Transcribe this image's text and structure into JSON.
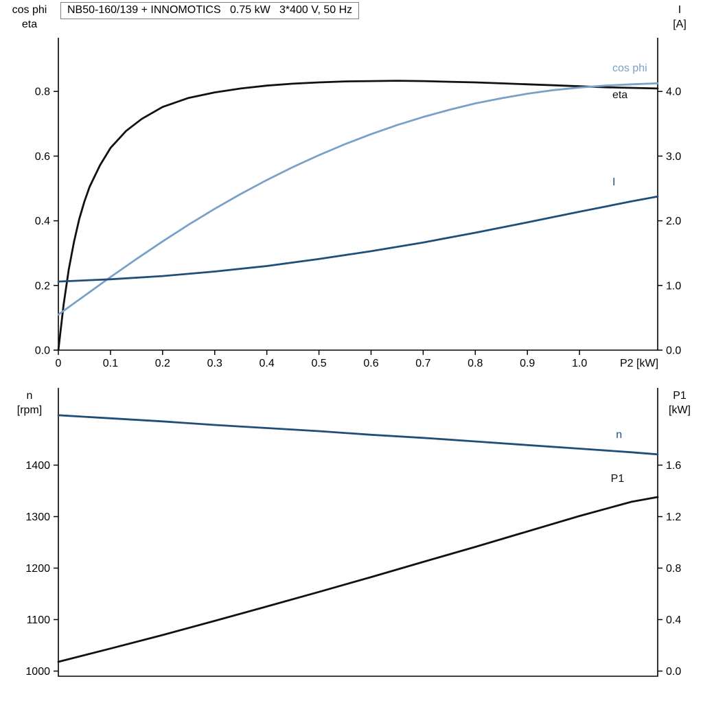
{
  "page": {
    "background": "#ffffff"
  },
  "title_box": {
    "text": "NB50-160/139 + INNOMOTICS   0.75 kW   3*400 V, 50 Hz"
  },
  "colors": {
    "black": "#111111",
    "light_blue": "#79A1C8",
    "dark_blue": "#1F4E79"
  },
  "chart_data": [
    {
      "type": "line",
      "name": "electrical-curves",
      "corner_labels": {
        "top_left": [
          "cos phi",
          "eta"
        ],
        "top_right": [
          "I",
          "[A]"
        ]
      },
      "x": {
        "lim": [
          0,
          1.15
        ],
        "tick_values": [
          0,
          0.1,
          0.2,
          0.3,
          0.4,
          0.5,
          0.6,
          0.7,
          0.8,
          0.9,
          1.0
        ],
        "tick_labels": [
          "0",
          "0.1",
          "0.2",
          "0.3",
          "0.4",
          "0.5",
          "0.6",
          "0.7",
          "0.8",
          "0.9",
          "1.0"
        ],
        "label": "P2 [kW]"
      },
      "left_axis": {
        "lim": [
          0,
          0.966
        ],
        "tick_values": [
          0,
          0.2,
          0.4,
          0.6,
          0.8
        ],
        "tick_labels": [
          "0.0",
          "0.2",
          "0.4",
          "0.6",
          "0.8"
        ]
      },
      "right_axis": {
        "lim": [
          0,
          4.83
        ],
        "tick_values": [
          0,
          1,
          2,
          3,
          4
        ],
        "tick_labels": [
          "0.0",
          "1.0",
          "2.0",
          "3.0",
          "4.0"
        ]
      },
      "series": [
        {
          "name": "eta",
          "axis": "left_axis",
          "color": "#111111",
          "label": {
            "text": "eta",
            "x": 1.063,
            "y": 0.779
          },
          "points": [
            [
              0,
              0
            ],
            [
              0.01,
              0.14
            ],
            [
              0.02,
              0.25
            ],
            [
              0.03,
              0.335
            ],
            [
              0.04,
              0.405
            ],
            [
              0.05,
              0.46
            ],
            [
              0.06,
              0.505
            ],
            [
              0.08,
              0.572
            ],
            [
              0.1,
              0.625
            ],
            [
              0.13,
              0.678
            ],
            [
              0.16,
              0.715
            ],
            [
              0.2,
              0.752
            ],
            [
              0.25,
              0.78
            ],
            [
              0.3,
              0.797
            ],
            [
              0.35,
              0.809
            ],
            [
              0.4,
              0.818
            ],
            [
              0.45,
              0.824
            ],
            [
              0.5,
              0.828
            ],
            [
              0.55,
              0.831
            ],
            [
              0.6,
              0.832
            ],
            [
              0.65,
              0.833
            ],
            [
              0.7,
              0.832
            ],
            [
              0.75,
              0.83
            ],
            [
              0.8,
              0.828
            ],
            [
              0.85,
              0.825
            ],
            [
              0.9,
              0.822
            ],
            [
              0.95,
              0.819
            ],
            [
              1.0,
              0.816
            ],
            [
              1.05,
              0.813
            ],
            [
              1.1,
              0.811
            ],
            [
              1.15,
              0.809
            ]
          ]
        },
        {
          "name": "cos-phi",
          "axis": "left_axis",
          "color": "#79A1C8",
          "label": {
            "text": "cos phi",
            "x": 1.063,
            "y": 0.862
          },
          "points": [
            [
              0,
              0.11
            ],
            [
              0.05,
              0.168
            ],
            [
              0.1,
              0.226
            ],
            [
              0.15,
              0.282
            ],
            [
              0.2,
              0.336
            ],
            [
              0.25,
              0.388
            ],
            [
              0.3,
              0.437
            ],
            [
              0.35,
              0.483
            ],
            [
              0.4,
              0.526
            ],
            [
              0.45,
              0.566
            ],
            [
              0.5,
              0.603
            ],
            [
              0.55,
              0.637
            ],
            [
              0.6,
              0.668
            ],
            [
              0.65,
              0.696
            ],
            [
              0.7,
              0.721
            ],
            [
              0.75,
              0.743
            ],
            [
              0.8,
              0.763
            ],
            [
              0.85,
              0.779
            ],
            [
              0.9,
              0.793
            ],
            [
              0.95,
              0.804
            ],
            [
              1.0,
              0.812
            ],
            [
              1.05,
              0.818
            ],
            [
              1.1,
              0.822
            ],
            [
              1.15,
              0.825
            ]
          ]
        },
        {
          "name": "current",
          "axis": "right_axis",
          "color": "#1F4E79",
          "label": {
            "text": "I",
            "x": 1.063,
            "y": 2.55
          },
          "points": [
            [
              0,
              1.06
            ],
            [
              0.1,
              1.095
            ],
            [
              0.2,
              1.145
            ],
            [
              0.3,
              1.215
            ],
            [
              0.4,
              1.3
            ],
            [
              0.5,
              1.41
            ],
            [
              0.6,
              1.53
            ],
            [
              0.7,
              1.665
            ],
            [
              0.8,
              1.815
            ],
            [
              0.9,
              1.975
            ],
            [
              1.0,
              2.14
            ],
            [
              1.1,
              2.3
            ],
            [
              1.15,
              2.375
            ]
          ]
        }
      ]
    },
    {
      "type": "line",
      "name": "mechanical-curves",
      "corner_labels": {
        "top_left": [
          "n",
          "[rpm]"
        ],
        "top_right": [
          "P1",
          "[kW]"
        ]
      },
      "x": {
        "lim": [
          0,
          1.15
        ],
        "tick_values": [],
        "tick_labels": [],
        "label": ""
      },
      "left_axis": {
        "lim": [
          990,
          1550
        ],
        "tick_values": [
          1000,
          1100,
          1200,
          1300,
          1400
        ],
        "tick_labels": [
          "1000",
          "1100",
          "1200",
          "1300",
          "1400"
        ]
      },
      "right_axis": {
        "lim": [
          -0.04,
          2.2
        ],
        "tick_values": [
          0,
          0.4,
          0.8,
          1.2,
          1.6
        ],
        "tick_labels": [
          "0.0",
          "0.4",
          "0.8",
          "1.2",
          "1.6"
        ]
      },
      "series": [
        {
          "name": "speed",
          "axis": "left_axis",
          "color": "#1F4E79",
          "label": {
            "text": "n",
            "x": 1.07,
            "y": 1453
          },
          "points": [
            [
              0,
              1497
            ],
            [
              0.1,
              1491
            ],
            [
              0.2,
              1485
            ],
            [
              0.3,
              1478
            ],
            [
              0.4,
              1472
            ],
            [
              0.5,
              1466
            ],
            [
              0.6,
              1459
            ],
            [
              0.7,
              1453
            ],
            [
              0.8,
              1446
            ],
            [
              0.9,
              1439
            ],
            [
              1.0,
              1432
            ],
            [
              1.1,
              1425
            ],
            [
              1.15,
              1421
            ]
          ]
        },
        {
          "name": "p1",
          "axis": "right_axis",
          "color": "#111111",
          "label": {
            "text": "P1",
            "x": 1.06,
            "y": 1.47
          },
          "points": [
            [
              0,
              0.072
            ],
            [
              0.1,
              0.175
            ],
            [
              0.2,
              0.28
            ],
            [
              0.3,
              0.39
            ],
            [
              0.4,
              0.502
            ],
            [
              0.5,
              0.615
            ],
            [
              0.6,
              0.73
            ],
            [
              0.7,
              0.848
            ],
            [
              0.8,
              0.965
            ],
            [
              0.9,
              1.085
            ],
            [
              1.0,
              1.205
            ],
            [
              1.1,
              1.315
            ],
            [
              1.15,
              1.352
            ]
          ]
        }
      ]
    }
  ]
}
